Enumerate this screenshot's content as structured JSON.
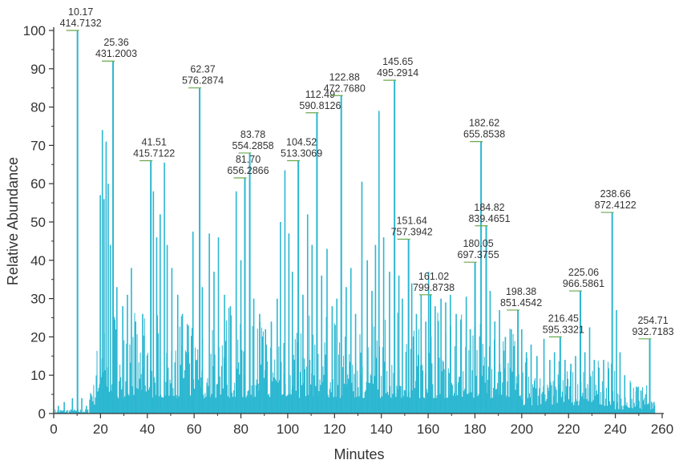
{
  "chart_data": {
    "type": "line",
    "title": "",
    "xlabel": "Minutes",
    "ylabel": "Relative Abundance",
    "xlim": [
      0,
      260
    ],
    "ylim": [
      0,
      100
    ],
    "x_ticks": [
      "0",
      "20",
      "40",
      "60",
      "80",
      "100",
      "120",
      "140",
      "160",
      "180",
      "200",
      "220",
      "240",
      "260"
    ],
    "y_ticks": [
      "0",
      "10",
      "20",
      "30",
      "40",
      "50",
      "60",
      "70",
      "80",
      "90",
      "100"
    ],
    "grid": false,
    "legend": "none",
    "trace_color": "#2bb7d1",
    "axis_color": "#333333",
    "annotation_color": "#6aa84f",
    "major_peaks": [
      {
        "x": 10.17,
        "y": 100,
        "time": "10.17",
        "mz": "414.7132"
      },
      {
        "x": 25.36,
        "y": 92,
        "time": "25.36",
        "mz": "431.2003"
      },
      {
        "x": 41.51,
        "y": 66,
        "time": "41.51",
        "mz": "415.7122"
      },
      {
        "x": 62.37,
        "y": 85,
        "time": "62.37",
        "mz": "576.2874"
      },
      {
        "x": 81.7,
        "y": 61.5,
        "time": "81.70",
        "mz": "656.2866"
      },
      {
        "x": 83.78,
        "y": 68,
        "time": "83.78",
        "mz": "554.2858"
      },
      {
        "x": 104.52,
        "y": 66,
        "time": "104.52",
        "mz": "513.3069"
      },
      {
        "x": 112.49,
        "y": 78.5,
        "time": "112.49",
        "mz": "590.8126"
      },
      {
        "x": 122.88,
        "y": 83,
        "time": "122.88",
        "mz": "472.7680"
      },
      {
        "x": 145.65,
        "y": 87,
        "time": "145.65",
        "mz": "495.2914"
      },
      {
        "x": 151.64,
        "y": 45.5,
        "time": "151.64",
        "mz": "757.3942"
      },
      {
        "x": 161.02,
        "y": 31,
        "time": "161.02",
        "mz": "799.8738"
      },
      {
        "x": 180.05,
        "y": 39.5,
        "time": "180.05",
        "mz": "697.3755"
      },
      {
        "x": 182.62,
        "y": 71,
        "time": "182.62",
        "mz": "655.8538"
      },
      {
        "x": 184.82,
        "y": 49,
        "time": "184.82",
        "mz": "839.4651"
      },
      {
        "x": 198.38,
        "y": 27,
        "time": "198.38",
        "mz": "851.4542"
      },
      {
        "x": 216.45,
        "y": 20,
        "time": "216.45",
        "mz": "595.3321"
      },
      {
        "x": 225.06,
        "y": 32,
        "time": "225.06",
        "mz": "966.5861"
      },
      {
        "x": 238.66,
        "y": 52.5,
        "time": "238.66",
        "mz": "872.4122"
      },
      {
        "x": 254.71,
        "y": 19.5,
        "time": "254.71",
        "mz": "932.7183"
      }
    ],
    "minor_peaks": [
      {
        "x": 19.9,
        "y": 57
      },
      {
        "x": 20.8,
        "y": 74
      },
      {
        "x": 21.5,
        "y": 56
      },
      {
        "x": 22.4,
        "y": 71
      },
      {
        "x": 23.3,
        "y": 60
      },
      {
        "x": 24.2,
        "y": 44
      },
      {
        "x": 27.0,
        "y": 33
      },
      {
        "x": 29.5,
        "y": 28
      },
      {
        "x": 31.5,
        "y": 31
      },
      {
        "x": 33.2,
        "y": 38
      },
      {
        "x": 35.0,
        "y": 24
      },
      {
        "x": 38.0,
        "y": 26
      },
      {
        "x": 42.6,
        "y": 58
      },
      {
        "x": 44.0,
        "y": 46
      },
      {
        "x": 45.5,
        "y": 52
      },
      {
        "x": 47.3,
        "y": 65.5
      },
      {
        "x": 48.5,
        "y": 44
      },
      {
        "x": 50.5,
        "y": 38
      },
      {
        "x": 53.0,
        "y": 31
      },
      {
        "x": 55.0,
        "y": 26
      },
      {
        "x": 57.5,
        "y": 23
      },
      {
        "x": 59.5,
        "y": 47.5
      },
      {
        "x": 63.5,
        "y": 33
      },
      {
        "x": 66.5,
        "y": 47
      },
      {
        "x": 68.5,
        "y": 37
      },
      {
        "x": 70.4,
        "y": 46
      },
      {
        "x": 73.0,
        "y": 31
      },
      {
        "x": 75.5,
        "y": 28
      },
      {
        "x": 78.0,
        "y": 58
      },
      {
        "x": 80.0,
        "y": 40
      },
      {
        "x": 85.5,
        "y": 30
      },
      {
        "x": 88.0,
        "y": 26
      },
      {
        "x": 90.5,
        "y": 22
      },
      {
        "x": 93.0,
        "y": 24
      },
      {
        "x": 95.5,
        "y": 30
      },
      {
        "x": 96.9,
        "y": 50
      },
      {
        "x": 98.8,
        "y": 63.5
      },
      {
        "x": 100.5,
        "y": 47
      },
      {
        "x": 102.0,
        "y": 37
      },
      {
        "x": 106.5,
        "y": 31
      },
      {
        "x": 108.5,
        "y": 52
      },
      {
        "x": 110.4,
        "y": 44
      },
      {
        "x": 114.5,
        "y": 36
      },
      {
        "x": 116.8,
        "y": 43
      },
      {
        "x": 119.0,
        "y": 28
      },
      {
        "x": 121.0,
        "y": 30
      },
      {
        "x": 125.0,
        "y": 33
      },
      {
        "x": 127.0,
        "y": 38
      },
      {
        "x": 129.0,
        "y": 26
      },
      {
        "x": 131.7,
        "y": 60.5
      },
      {
        "x": 134.0,
        "y": 40
      },
      {
        "x": 136.0,
        "y": 32
      },
      {
        "x": 137.5,
        "y": 44
      },
      {
        "x": 139.0,
        "y": 79
      },
      {
        "x": 141.0,
        "y": 46
      },
      {
        "x": 143.5,
        "y": 37
      },
      {
        "x": 147.5,
        "y": 36
      },
      {
        "x": 149.0,
        "y": 30
      },
      {
        "x": 153.0,
        "y": 34
      },
      {
        "x": 155.0,
        "y": 26
      },
      {
        "x": 157.0,
        "y": 31
      },
      {
        "x": 159.0,
        "y": 24
      },
      {
        "x": 160.2,
        "y": 37
      },
      {
        "x": 163.0,
        "y": 28
      },
      {
        "x": 165.5,
        "y": 30
      },
      {
        "x": 167.5,
        "y": 29
      },
      {
        "x": 169.5,
        "y": 31
      },
      {
        "x": 172.0,
        "y": 26
      },
      {
        "x": 174.0,
        "y": 24
      },
      {
        "x": 176.3,
        "y": 30.5
      },
      {
        "x": 178.0,
        "y": 22
      },
      {
        "x": 186.5,
        "y": 32
      },
      {
        "x": 188.5,
        "y": 24
      },
      {
        "x": 190.5,
        "y": 27
      },
      {
        "x": 193.0,
        "y": 20
      },
      {
        "x": 195.5,
        "y": 22
      },
      {
        "x": 200.0,
        "y": 22
      },
      {
        "x": 202.0,
        "y": 16
      },
      {
        "x": 204.0,
        "y": 18
      },
      {
        "x": 206.5,
        "y": 15
      },
      {
        "x": 209.5,
        "y": 19.5
      },
      {
        "x": 212.0,
        "y": 14
      },
      {
        "x": 214.0,
        "y": 16
      },
      {
        "x": 218.5,
        "y": 14
      },
      {
        "x": 221.0,
        "y": 13
      },
      {
        "x": 223.0,
        "y": 15
      },
      {
        "x": 227.0,
        "y": 16
      },
      {
        "x": 229.0,
        "y": 22.5
      },
      {
        "x": 231.0,
        "y": 14
      },
      {
        "x": 233.0,
        "y": 12
      },
      {
        "x": 235.0,
        "y": 14
      },
      {
        "x": 237.0,
        "y": 11
      },
      {
        "x": 240.5,
        "y": 27
      },
      {
        "x": 242.0,
        "y": 16
      },
      {
        "x": 244.0,
        "y": 10
      },
      {
        "x": 246.5,
        "y": 8
      },
      {
        "x": 249.0,
        "y": 7
      },
      {
        "x": 251.0,
        "y": 6
      },
      {
        "x": 253.0,
        "y": 5
      },
      {
        "x": 256.5,
        "y": 3
      },
      {
        "x": 2.0,
        "y": 2
      },
      {
        "x": 4.5,
        "y": 3
      },
      {
        "x": 8.0,
        "y": 4
      },
      {
        "x": 12.0,
        "y": 4
      },
      {
        "x": 14.0,
        "y": 2
      }
    ]
  }
}
